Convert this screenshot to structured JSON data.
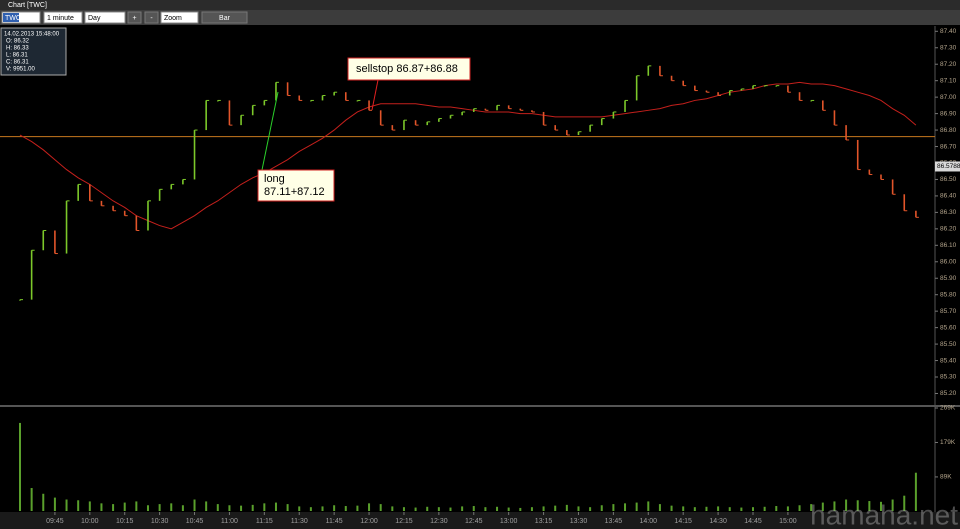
{
  "window": {
    "title": "Chart [TWC]"
  },
  "toolbar": {
    "symbol": "TWC",
    "interval": "1 minute",
    "range": "Day",
    "zoom_in": "+",
    "zoom_out": "-",
    "zoom": "Zoom",
    "style": "Bar"
  },
  "info_box": {
    "datetime": "14.02.2013 15:48:00",
    "lines": [
      "O: 86.32",
      "H: 86.33",
      "L: 86.31",
      "C: 86.31",
      "V: 9951.00"
    ]
  },
  "watermark": "hamaha.net",
  "chart_data": [
    {
      "type": "line",
      "x": [
        "09:30",
        "09:35",
        "09:40",
        "09:45",
        "09:50",
        "09:55",
        "10:00",
        "10:05",
        "10:10",
        "10:15",
        "10:20",
        "10:25",
        "10:30",
        "10:35",
        "10:40",
        "10:45",
        "10:50",
        "10:55",
        "11:00",
        "11:05",
        "11:10",
        "11:15",
        "11:20",
        "11:25",
        "11:30",
        "11:35",
        "11:40",
        "11:45",
        "11:50",
        "11:55",
        "12:00",
        "12:05",
        "12:10",
        "12:15",
        "12:20",
        "12:25",
        "12:30",
        "12:35",
        "12:40",
        "12:45",
        "12:50",
        "12:55",
        "13:00",
        "13:05",
        "13:10",
        "13:15",
        "13:20",
        "13:25",
        "13:30",
        "13:35",
        "13:40",
        "13:45",
        "13:50",
        "13:55",
        "14:00",
        "14:05",
        "14:10",
        "14:15",
        "14:20",
        "14:25",
        "14:30",
        "14:35",
        "14:40",
        "14:45",
        "14:50",
        "14:55",
        "15:00",
        "15:05",
        "15:10",
        "15:15",
        "15:20",
        "15:25",
        "15:30",
        "15:35",
        "15:40",
        "15:45",
        "15:50",
        "15:55"
      ],
      "series": [
        {
          "up_color": "#7cc82a",
          "down_color": "#e2552a",
          "values": [
            85.77,
            86.07,
            86.19,
            86.05,
            86.37,
            86.47,
            86.37,
            86.34,
            86.31,
            86.28,
            86.19,
            86.37,
            86.44,
            86.47,
            86.5,
            86.8,
            86.98,
            86.98,
            86.83,
            86.89,
            86.95,
            86.98,
            87.09,
            87.01,
            86.98,
            86.98,
            87.01,
            87.03,
            86.98,
            86.98,
            86.92,
            86.83,
            86.8,
            86.86,
            86.83,
            86.85,
            86.87,
            86.89,
            86.91,
            86.93,
            86.92,
            86.95,
            86.93,
            86.92,
            86.91,
            86.83,
            86.8,
            86.77,
            86.79,
            86.83,
            86.87,
            86.91,
            86.98,
            87.13,
            87.19,
            87.13,
            87.1,
            87.07,
            87.04,
            87.03,
            87.01,
            87.04,
            87.05,
            87.07,
            87.07,
            87.07,
            87.03,
            86.98,
            86.98,
            86.92,
            86.83,
            86.74,
            86.56,
            86.53,
            86.5,
            86.41,
            86.31,
            86.27
          ]
        },
        {
          "color": "#c4201c",
          "values": [
            86.77,
            86.73,
            86.68,
            86.62,
            86.56,
            86.51,
            86.47,
            86.42,
            86.37,
            86.33,
            86.28,
            86.25,
            86.22,
            86.2,
            86.24,
            86.28,
            86.33,
            86.37,
            86.42,
            86.47,
            86.51,
            86.54,
            86.58,
            86.62,
            86.67,
            86.71,
            86.75,
            86.8,
            86.86,
            86.91,
            86.94,
            86.96,
            86.96,
            86.96,
            86.96,
            86.95,
            86.94,
            86.94,
            86.93,
            86.92,
            86.91,
            86.91,
            86.91,
            86.9,
            86.9,
            86.89,
            86.88,
            86.88,
            86.88,
            86.88,
            86.88,
            86.89,
            86.9,
            86.91,
            86.92,
            86.93,
            86.95,
            86.96,
            86.98,
            86.99,
            87.01,
            87.03,
            87.04,
            87.05,
            87.07,
            87.08,
            87.08,
            87.09,
            87.08,
            87.08,
            87.07,
            87.05,
            87.03,
            87.01,
            86.98,
            86.93,
            86.89,
            86.83
          ]
        }
      ],
      "ylim": [
        85.13,
        87.42
      ],
      "yticks": [
        {
          "value": 85.2,
          "label": "85.20"
        },
        {
          "value": 85.3,
          "label": "85.30"
        },
        {
          "value": 85.4,
          "label": "85.40"
        },
        {
          "value": 85.5,
          "label": "85.50"
        },
        {
          "value": 85.6,
          "label": "85.60"
        },
        {
          "value": 85.7,
          "label": "85.70"
        },
        {
          "value": 85.8,
          "label": "85.80"
        },
        {
          "value": 85.9,
          "label": "85.90"
        },
        {
          "value": 86.0,
          "label": "86.00"
        },
        {
          "value": 86.1,
          "label": "86.10"
        },
        {
          "value": 86.2,
          "label": "86.20"
        },
        {
          "value": 86.3,
          "label": "86.30"
        },
        {
          "value": 86.4,
          "label": "86.40"
        },
        {
          "value": 86.5,
          "label": "86.50"
        },
        {
          "value": 86.6,
          "label": "86.60"
        },
        {
          "value": 86.7,
          "label": "86.70"
        },
        {
          "value": 86.8,
          "label": "86.80"
        },
        {
          "value": 86.9,
          "label": "86.90"
        },
        {
          "value": 87.0,
          "label": "87.00"
        },
        {
          "value": 87.1,
          "label": "87.10"
        },
        {
          "value": 87.2,
          "label": "87.20"
        },
        {
          "value": 87.3,
          "label": "87.30"
        },
        {
          "value": 87.4,
          "label": "87.40"
        }
      ],
      "xticks": [
        "09:45",
        "10:00",
        "10:15",
        "10:30",
        "10:45",
        "11:00",
        "11:15",
        "11:30",
        "11:45",
        "12:00",
        "12:15",
        "12:30",
        "12:45",
        "13:00",
        "13:15",
        "13:30",
        "13:45",
        "14:00",
        "14:15",
        "14:30",
        "14:45",
        "15:00"
      ],
      "hline": {
        "value": 86.76,
        "color": "#c8781e"
      },
      "last_price": 86.5788,
      "annotations": [
        {
          "text": "sellstop 86.87+86.88"
        },
        {
          "lines": [
            "long",
            "87.11+87.12"
          ]
        }
      ]
    },
    {
      "type": "bar",
      "color": "#5aa02c",
      "values": [
        230000,
        60000,
        45000,
        35000,
        30000,
        28000,
        25000,
        20000,
        18000,
        22000,
        25000,
        15000,
        18000,
        20000,
        15000,
        30000,
        25000,
        18000,
        15000,
        14000,
        16000,
        20000,
        22000,
        18000,
        12000,
        10000,
        12000,
        15000,
        13000,
        14000,
        20000,
        18000,
        12000,
        10000,
        9000,
        11000,
        10000,
        9000,
        12000,
        13000,
        10000,
        11000,
        9000,
        8000,
        10000,
        12000,
        14000,
        16000,
        12000,
        10000,
        15000,
        18000,
        20000,
        22000,
        25000,
        18000,
        14000,
        12000,
        10000,
        11000,
        12000,
        10000,
        9000,
        10000,
        11000,
        13000,
        12000,
        15000,
        18000,
        22000,
        25000,
        30000,
        28000,
        26000,
        24000,
        30000,
        40000,
        100000
      ],
      "ylim": [
        0,
        269000
      ],
      "yticks": [
        {
          "value": 89000,
          "label": "89K"
        },
        {
          "value": 179000,
          "label": "179K"
        },
        {
          "value": 269000,
          "label": "269K"
        }
      ]
    }
  ]
}
